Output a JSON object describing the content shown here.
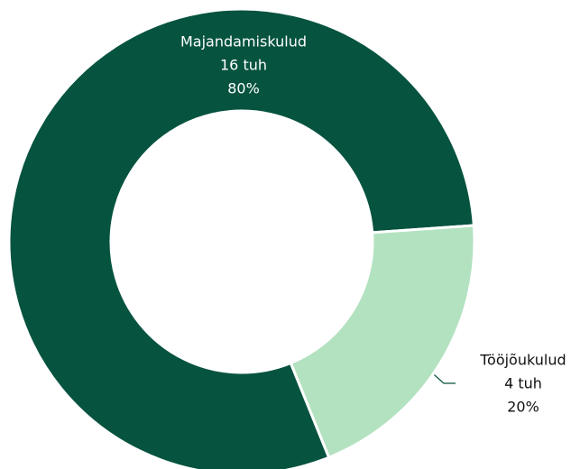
{
  "chart_data": {
    "type": "donut",
    "categories": [
      "Majandamiskulud",
      "Tööjõukulud"
    ],
    "values": [
      16,
      4
    ],
    "value_labels": [
      "16 tuh",
      "4 tuh"
    ],
    "percentages": [
      80,
      20
    ],
    "percentage_labels": [
      "80%",
      "20%"
    ],
    "colors": [
      "#06533f",
      "#b3e2c0"
    ]
  }
}
